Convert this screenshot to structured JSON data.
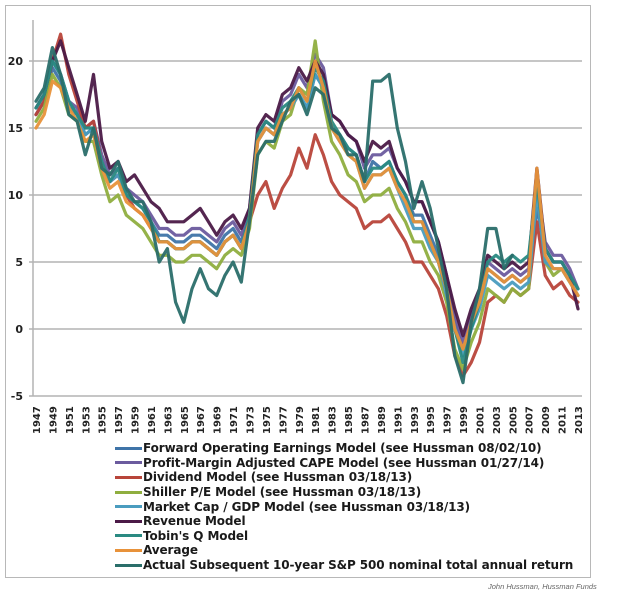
{
  "chart_data": {
    "type": "line",
    "title": "",
    "xlabel": "",
    "ylabel": "",
    "ylim": [
      -5,
      22.5
    ],
    "xlim": [
      1947,
      2013
    ],
    "yticks": [
      "20",
      "15",
      "10",
      "5",
      "0",
      "-5"
    ],
    "ytick_values": [
      20,
      15,
      10,
      5,
      0,
      -5
    ],
    "xticks": [
      "1947",
      "1949",
      "1951",
      "1953",
      "1955",
      "1957",
      "1959",
      "1961",
      "1963",
      "1965",
      "1967",
      "1969",
      "1971",
      "1973",
      "1975",
      "1977",
      "1979",
      "1981",
      "1983",
      "1985",
      "1987",
      "1989",
      "1991",
      "1993",
      "1995",
      "1997",
      "1999",
      "2001",
      "2003",
      "2005",
      "2007",
      "2009",
      "2011",
      "2013"
    ],
    "grid": true,
    "legend_position": "bottom",
    "x": [
      1947,
      1948,
      1949,
      1950,
      1951,
      1952,
      1953,
      1954,
      1955,
      1956,
      1957,
      1958,
      1959,
      1960,
      1961,
      1962,
      1963,
      1964,
      1965,
      1966,
      1967,
      1968,
      1969,
      1970,
      1971,
      1972,
      1973,
      1974,
      1975,
      1976,
      1977,
      1978,
      1979,
      1980,
      1981,
      1982,
      1983,
      1984,
      1985,
      1986,
      1987,
      1988,
      1989,
      1990,
      1991,
      1992,
      1993,
      1994,
      1995,
      1996,
      1997,
      1998,
      1999,
      2000,
      2001,
      2002,
      2003,
      2004,
      2005,
      2006,
      2007,
      2008,
      2009,
      2010,
      2011,
      2012,
      2013
    ],
    "series": [
      {
        "name": "Forward Operating Earnings Model (see Hussman 08/02/10)",
        "color": "#3f74a8",
        "values": [
          16,
          17,
          19.5,
          18.5,
          16.5,
          16,
          14.5,
          15,
          12.5,
          11,
          11.5,
          10,
          9.5,
          9,
          8,
          7,
          7,
          6.5,
          6.5,
          7,
          7,
          6.5,
          6,
          7,
          7.5,
          6.5,
          8.5,
          14,
          15,
          14.5,
          16,
          16.5,
          17.5,
          16.5,
          19,
          18,
          15,
          14.5,
          13.5,
          13,
          11,
          12.5,
          12,
          12.5,
          11,
          10,
          8.5,
          8.5,
          7,
          5.5,
          3.5,
          0.5,
          -1.5,
          0.5,
          2,
          4.5,
          4,
          3.5,
          4,
          3.5,
          4,
          9,
          6,
          5,
          5,
          4,
          3
        ]
      },
      {
        "name": "Profit-Margin Adjusted CAPE Model (see Hussman 01/27/14)",
        "color": "#6b5b9e",
        "values": [
          16,
          17,
          20,
          19,
          17,
          16.5,
          15,
          15.5,
          13,
          11.5,
          12,
          10.5,
          10,
          9.5,
          8.5,
          7.5,
          7.5,
          7,
          7,
          7.5,
          7.5,
          7,
          6.5,
          7.5,
          8,
          7,
          9,
          14.5,
          15.5,
          15,
          17,
          17.5,
          19,
          18,
          20.5,
          19.5,
          16,
          15.5,
          14.5,
          14,
          12,
          13,
          13,
          13.5,
          12,
          11,
          9.5,
          9.5,
          8,
          6.5,
          4,
          1,
          -1,
          1,
          2.5,
          5,
          4.5,
          4,
          4.5,
          4,
          4.5,
          11,
          6.5,
          5.5,
          5.5,
          4.5,
          3
        ]
      },
      {
        "name": "Dividend Model (see Hussman 03/18/13)",
        "color": "#b8453a",
        "values": [
          16,
          17,
          20,
          22,
          19,
          17,
          15,
          15.5,
          12.5,
          11,
          11.5,
          10,
          9,
          8.5,
          7.5,
          6.5,
          6.5,
          6,
          6,
          6.5,
          6.5,
          6,
          5.5,
          6.5,
          7,
          6,
          8,
          10,
          11,
          9,
          10.5,
          11.5,
          13.5,
          12,
          14.5,
          13,
          11,
          10,
          9.5,
          9,
          7.5,
          8,
          8,
          8.5,
          7.5,
          6.5,
          5,
          5,
          4,
          3,
          1,
          -2,
          -3.5,
          -2.5,
          -1,
          2,
          2.5,
          2,
          3,
          2.5,
          3,
          8,
          4,
          3,
          3.5,
          2.5,
          2
        ]
      },
      {
        "name": "Shiller P/E Model (see Hussman 03/18/13)",
        "color": "#8fae3f",
        "values": [
          15.5,
          16.5,
          19,
          18,
          16,
          15.5,
          14,
          14,
          11.5,
          9.5,
          10,
          8.5,
          8,
          7.5,
          6.5,
          5.5,
          5.5,
          5,
          5,
          5.5,
          5.5,
          5,
          4.5,
          5.5,
          6,
          5.5,
          7.5,
          13,
          14,
          13.5,
          15.5,
          16,
          18,
          17.5,
          21.5,
          17,
          14,
          13,
          11.5,
          11,
          9.5,
          10,
          10,
          10.5,
          9,
          8,
          6.5,
          6.5,
          5,
          4,
          2,
          -1.5,
          -3,
          -1,
          0.5,
          3,
          2.5,
          2,
          3,
          2.5,
          3,
          11,
          5,
          4,
          4.5,
          3.5,
          2.5
        ]
      },
      {
        "name": "Market Cap / GDP Model (see Hussman 03/18/13)",
        "color": "#4a9cbf",
        "values": [
          16.5,
          17.5,
          20,
          19,
          17,
          16,
          14.5,
          15,
          12.5,
          11,
          11.5,
          10,
          9.5,
          9,
          8,
          6.5,
          6.5,
          6,
          6,
          6.5,
          6.5,
          6,
          5.5,
          6.5,
          7,
          6,
          8.5,
          14,
          15,
          14.5,
          16,
          16.5,
          17.5,
          16.5,
          19,
          18,
          15,
          14,
          13,
          12.5,
          10.5,
          11.5,
          11.5,
          12,
          10.5,
          9,
          7.5,
          7.5,
          6,
          5,
          2.5,
          0,
          -2,
          0,
          1.5,
          4,
          3.5,
          3,
          3.5,
          3,
          3.5,
          10,
          5,
          4.5,
          4.5,
          3.5,
          2.5
        ]
      },
      {
        "name": "Revenue Model",
        "color": "#4b1a47",
        "values": [
          16.5,
          17.5,
          20,
          21.5,
          19.5,
          17.5,
          15.5,
          19,
          14,
          12,
          12.5,
          11,
          11.5,
          10.5,
          9.5,
          9,
          8,
          8,
          8,
          8.5,
          9,
          8,
          7,
          8,
          8.5,
          7.5,
          9,
          15,
          16,
          15.5,
          17.5,
          18,
          19.5,
          18.5,
          20,
          19,
          16,
          15.5,
          14.5,
          14,
          12.5,
          14,
          13.5,
          14,
          12,
          11,
          9.5,
          9.5,
          8,
          6.5,
          4,
          1.5,
          -0.5,
          1.5,
          3,
          5.5,
          5,
          4.5,
          5,
          4.5,
          5,
          12,
          6,
          5,
          5,
          4,
          1.5
        ]
      },
      {
        "name": "Tobin's Q Model",
        "color": "#2a8a82",
        "values": [
          16.5,
          17.5,
          20,
          19,
          17,
          16,
          15,
          15,
          12.5,
          11,
          12,
          10,
          9.5,
          9,
          8,
          6.5,
          6.5,
          6,
          6,
          6.5,
          6.5,
          6,
          5.5,
          6.5,
          7,
          6,
          8.5,
          14.5,
          15.5,
          15,
          16.5,
          17,
          18,
          17,
          19.5,
          18.5,
          15.5,
          14.5,
          13.5,
          13,
          11,
          12,
          12,
          12.5,
          11,
          10,
          8,
          8,
          6.5,
          5,
          3,
          0,
          -2.5,
          0,
          2,
          5,
          5.5,
          5,
          5.5,
          5,
          5.5,
          11,
          6,
          5,
          5,
          4,
          3
        ]
      },
      {
        "name": "Average",
        "color": "#e8923a",
        "values": [
          15,
          16,
          18.5,
          18,
          16.5,
          15.5,
          14,
          14.5,
          12,
          10.5,
          11,
          9.5,
          9,
          8.5,
          7.5,
          6.5,
          6.5,
          6,
          6,
          6.5,
          6.5,
          6,
          5.5,
          6.5,
          7,
          6,
          8,
          14,
          15,
          14.5,
          16,
          16.5,
          18,
          17,
          20,
          18,
          15,
          14,
          13,
          12.5,
          10.5,
          11.5,
          11.5,
          12,
          10.5,
          9.5,
          8,
          8,
          6.5,
          5,
          3,
          0,
          -1.5,
          0.5,
          2,
          4.5,
          4,
          3.5,
          4,
          3.5,
          4,
          12,
          5.5,
          4.5,
          4.5,
          3.5,
          2.5
        ]
      },
      {
        "name": "Actual Subsequent 10-year S&P 500 nominal total annual return",
        "color": "#2a6e6a",
        "values": [
          17,
          18,
          21,
          19,
          16,
          15.5,
          13,
          15,
          12,
          11.5,
          12.5,
          10.5,
          9.5,
          9.5,
          8,
          5,
          6,
          2,
          0.5,
          3,
          4.5,
          3,
          2.5,
          4,
          5,
          3.5,
          8,
          13,
          14,
          14,
          15.5,
          17,
          17.5,
          16,
          18,
          17.5,
          15,
          14.5,
          13,
          13,
          11,
          18.5,
          18.5,
          19,
          15,
          12.5,
          9,
          11,
          9,
          6,
          3,
          -2,
          -4,
          0.5,
          3,
          7.5,
          7.5,
          4.5,
          5.5,
          null,
          null,
          null,
          null,
          null,
          null,
          null,
          null
        ]
      }
    ]
  },
  "legend": {
    "items": [
      {
        "label": "Forward Operating Earnings Model (see Hussman 08/02/10)",
        "color": "#3f74a8"
      },
      {
        "label": "Profit-Margin Adjusted CAPE Model (see Hussman 01/27/14)",
        "color": "#6b5b9e"
      },
      {
        "label": "Dividend Model (see Hussman 03/18/13)",
        "color": "#b8453a"
      },
      {
        "label": "Shiller P/E Model (see Hussman 03/18/13)",
        "color": "#8fae3f"
      },
      {
        "label": "Market Cap / GDP Model (see Hussman 03/18/13)",
        "color": "#4a9cbf"
      },
      {
        "label": "Revenue Model",
        "color": "#4b1a47"
      },
      {
        "label": "Tobin's Q Model",
        "color": "#2a8a82"
      },
      {
        "label": "Average",
        "color": "#e8923a"
      },
      {
        "label": "Actual Subsequent 10-year S&P 500 nominal total annual return",
        "color": "#2a6e6a"
      }
    ]
  },
  "credit": "John Hussman, Hussman Funds"
}
